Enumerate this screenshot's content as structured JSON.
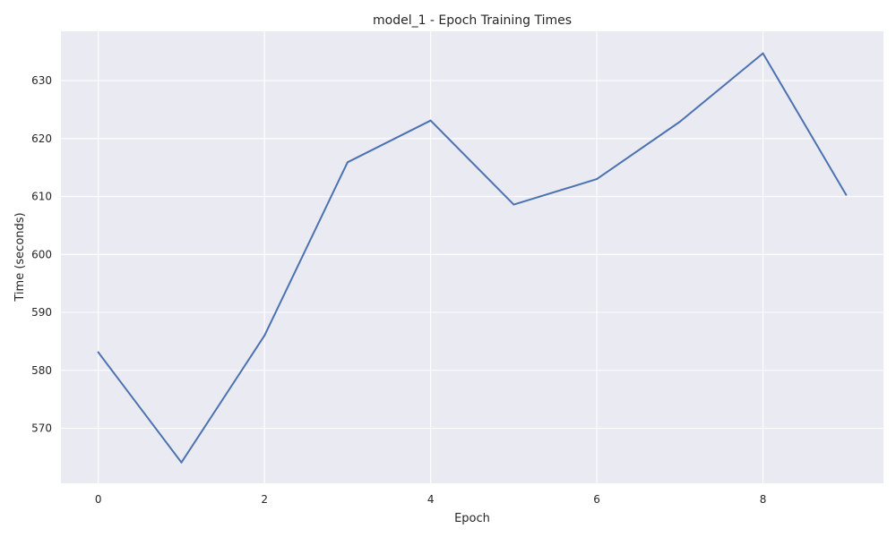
{
  "chart_data": {
    "type": "line",
    "title": "model_1 - Epoch Training Times",
    "xlabel": "Epoch",
    "ylabel": "Time (seconds)",
    "xlim": [
      -0.45,
      9.45
    ],
    "ylim": [
      560.5,
      638.5
    ],
    "xticks": [
      0,
      2,
      4,
      6,
      8
    ],
    "yticks": [
      570,
      580,
      590,
      600,
      610,
      620,
      630
    ],
    "grid": true,
    "legend": "none",
    "series": [
      {
        "color": "#4c72b0",
        "x": [
          0,
          1,
          2,
          3,
          4,
          5,
          6,
          7,
          8,
          9
        ],
        "y": [
          583.1,
          564.1,
          586.0,
          615.9,
          623.1,
          608.6,
          613.0,
          622.9,
          634.7,
          610.3
        ]
      }
    ]
  }
}
